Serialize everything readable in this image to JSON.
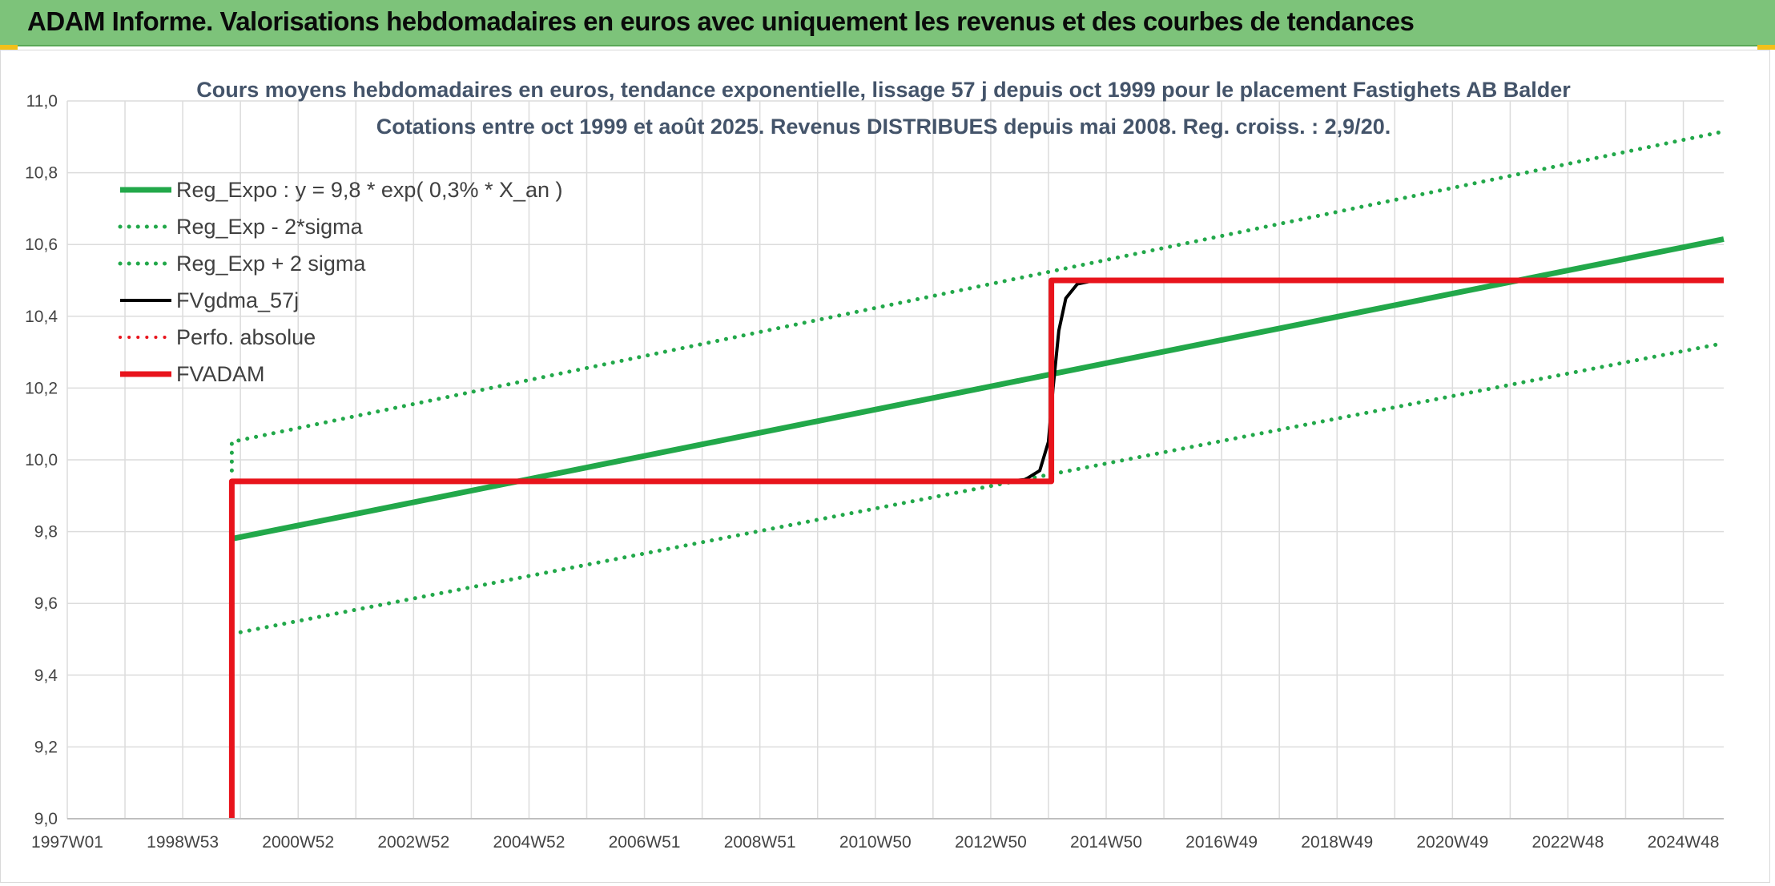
{
  "banner": {
    "title": "ADAM Informe. Valorisations hebdomadaires en euros avec uniquement les revenus et des courbes de tendances",
    "color": "#7dc37a"
  },
  "chart_data": {
    "type": "line",
    "title": "Cours moyens hebdomadaires en euros, tendance exponentielle, lissage 57 j depuis oct 1999 pour le placement Fastighets AB Balder",
    "subtitle": "Cotations entre oct 1999 et août 2025. Revenus DISTRIBUES depuis mai 2008. Reg. croiss. : 2,9/20.",
    "xlabel": "",
    "ylabel": "",
    "xlim": [
      1997.0,
      2025.7
    ],
    "ylim": [
      9.0,
      11.0
    ],
    "x_ticks": [
      {
        "pos": 1997.0,
        "label": "1997W01"
      },
      {
        "pos": 1999.0,
        "label": "1998W53"
      },
      {
        "pos": 2001.0,
        "label": "2000W52"
      },
      {
        "pos": 2003.0,
        "label": "2002W52"
      },
      {
        "pos": 2005.0,
        "label": "2004W52"
      },
      {
        "pos": 2007.0,
        "label": "2006W51"
      },
      {
        "pos": 2009.0,
        "label": "2008W51"
      },
      {
        "pos": 2011.0,
        "label": "2010W50"
      },
      {
        "pos": 2013.0,
        "label": "2012W50"
      },
      {
        "pos": 2015.0,
        "label": "2014W50"
      },
      {
        "pos": 2017.0,
        "label": "2016W49"
      },
      {
        "pos": 2019.0,
        "label": "2018W49"
      },
      {
        "pos": 2021.0,
        "label": "2020W49"
      },
      {
        "pos": 2023.0,
        "label": "2022W48"
      },
      {
        "pos": 2025.0,
        "label": "2024W48"
      }
    ],
    "y_ticks": [
      {
        "value": 9.0,
        "label": "9,0"
      },
      {
        "value": 9.2,
        "label": "9,2"
      },
      {
        "value": 9.4,
        "label": "9,4"
      },
      {
        "value": 9.6,
        "label": "9,6"
      },
      {
        "value": 9.8,
        "label": "9,8"
      },
      {
        "value": 10.0,
        "label": "10,0"
      },
      {
        "value": 10.2,
        "label": "10,2"
      },
      {
        "value": 10.4,
        "label": "10,4"
      },
      {
        "value": 10.6,
        "label": "10,6"
      },
      {
        "value": 10.8,
        "label": "10,8"
      },
      {
        "value": 11.0,
        "label": "11,0"
      }
    ],
    "grid": true,
    "legend_position": "top-left",
    "series": [
      {
        "name": "Reg_Expo : y = 9,8 * exp( 0,3% *  X_an )",
        "color": "#22a84a",
        "style": "solid",
        "width": 7,
        "points": [
          [
            1999.85,
            9.78
          ],
          [
            2025.7,
            10.615
          ]
        ]
      },
      {
        "name": "Reg_Exp - 2*sigma",
        "color": "#22a84a",
        "style": "dotted",
        "width": 5,
        "points": [
          [
            1999.85,
            9.515
          ],
          [
            2025.7,
            10.325
          ]
        ]
      },
      {
        "name": "Reg_Exp + 2 sigma",
        "color": "#22a84a",
        "style": "dotted",
        "width": 5,
        "points": [
          [
            1999.85,
            9.97
          ],
          [
            1999.85,
            10.05
          ],
          [
            2025.7,
            10.915
          ]
        ]
      },
      {
        "name": "FVgdma_57j",
        "color": "#000000",
        "style": "solid",
        "width": 4,
        "points": [
          [
            2013.3,
            9.94
          ],
          [
            2013.6,
            9.945
          ],
          [
            2013.85,
            9.97
          ],
          [
            2014.0,
            10.05
          ],
          [
            2014.08,
            10.2
          ],
          [
            2014.18,
            10.36
          ],
          [
            2014.3,
            10.45
          ],
          [
            2014.5,
            10.49
          ],
          [
            2014.8,
            10.5
          ]
        ]
      },
      {
        "name": "Perfo. absolue",
        "color": "#e8141c",
        "style": "dotted",
        "width": 4,
        "points": []
      },
      {
        "name": "FVADAM",
        "color": "#e8141c",
        "style": "solid",
        "width": 7,
        "points": [
          [
            1999.85,
            9.0
          ],
          [
            1999.85,
            9.94
          ],
          [
            2014.05,
            9.94
          ],
          [
            2014.05,
            10.5
          ],
          [
            2025.7,
            10.5
          ]
        ]
      }
    ]
  }
}
